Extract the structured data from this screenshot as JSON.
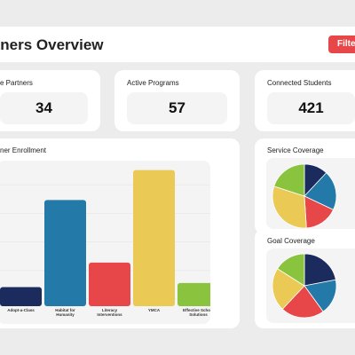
{
  "header": {
    "title": "rtners Overview",
    "filter_label": "Filte"
  },
  "stats": [
    {
      "label": "e Partners",
      "value": "34"
    },
    {
      "label": "Active Programs",
      "value": "57"
    },
    {
      "label": "Connected Students",
      "value": "421"
    }
  ],
  "enrollment": {
    "title": "ner Enrollment",
    "chart_data": {
      "type": "bar",
      "categories": [
        "Adopt-a-Class",
        "Habitat for Humanity",
        "Literacy Interventions",
        "YMCA",
        "Effective School Solutions"
      ],
      "category_lines": [
        [
          "Adopt-a-Class"
        ],
        [
          "Habitat for",
          "Humanity"
        ],
        [
          "Literacy",
          "Interventions"
        ],
        [
          "YMCA"
        ],
        [
          "Effective School",
          "Solutions"
        ]
      ],
      "values": [
        14,
        78,
        32,
        100,
        17
      ],
      "colors": [
        "#1b2b5e",
        "#2379a8",
        "#e8474a",
        "#ebc955",
        "#8ac43f"
      ],
      "ylim": [
        0,
        105
      ]
    }
  },
  "service": {
    "title": "Service Coverage",
    "chart_data": {
      "type": "pie",
      "values": [
        12,
        20,
        17,
        31,
        20
      ],
      "colors": [
        "#1b2b5e",
        "#2379a8",
        "#e8474a",
        "#ebc955",
        "#8ac43f"
      ]
    }
  },
  "goal": {
    "title": "Goal Coverage",
    "chart_data": {
      "type": "pie",
      "values": [
        22,
        18,
        22,
        22,
        16
      ],
      "colors": [
        "#1b2b5e",
        "#2379a8",
        "#e8474a",
        "#ebc955",
        "#8ac43f"
      ]
    }
  }
}
